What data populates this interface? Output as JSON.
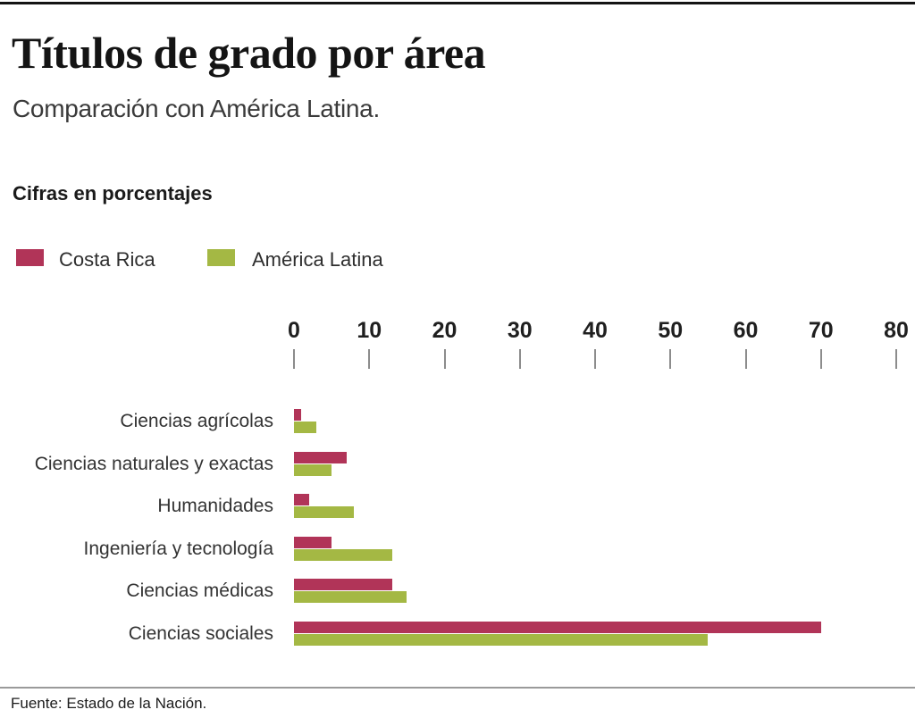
{
  "header": {
    "title": "Títulos de grado por área",
    "subtitle": "Comparación con América Latina.",
    "units_note": "Cifras en porcentajes"
  },
  "footer": {
    "source": "Fuente: Estado de la Nación."
  },
  "colors": {
    "costa_rica": "#b13458",
    "america_latina": "#a4b844",
    "tick_mark": "#8c8c8c",
    "top_rule": "#141414",
    "bottom_rule": "#9a9a9a"
  },
  "chart_data": {
    "type": "bar",
    "orientation": "horizontal",
    "title": "Títulos de grado por área",
    "subtitle": "Comparación con América Latina.",
    "units": "Cifras en porcentajes",
    "categories": [
      "Ciencias agrícolas",
      "Ciencias naturales y exactas",
      "Humanidades",
      "Ingeniería y tecnología",
      "Ciencias médicas",
      "Ciencias sociales"
    ],
    "series": [
      {
        "name": "Costa Rica",
        "color": "#b13458",
        "values": [
          1,
          7,
          2,
          5,
          13,
          70
        ]
      },
      {
        "name": "América Latina",
        "color": "#a4b844",
        "values": [
          3,
          5,
          8,
          13,
          15,
          55
        ]
      }
    ],
    "x_axis": {
      "min": 0,
      "max": 80,
      "tick_step": 10,
      "ticks": [
        0,
        10,
        20,
        30,
        40,
        50,
        60,
        70,
        80
      ]
    },
    "grid": false,
    "legend_position": "top-left"
  }
}
